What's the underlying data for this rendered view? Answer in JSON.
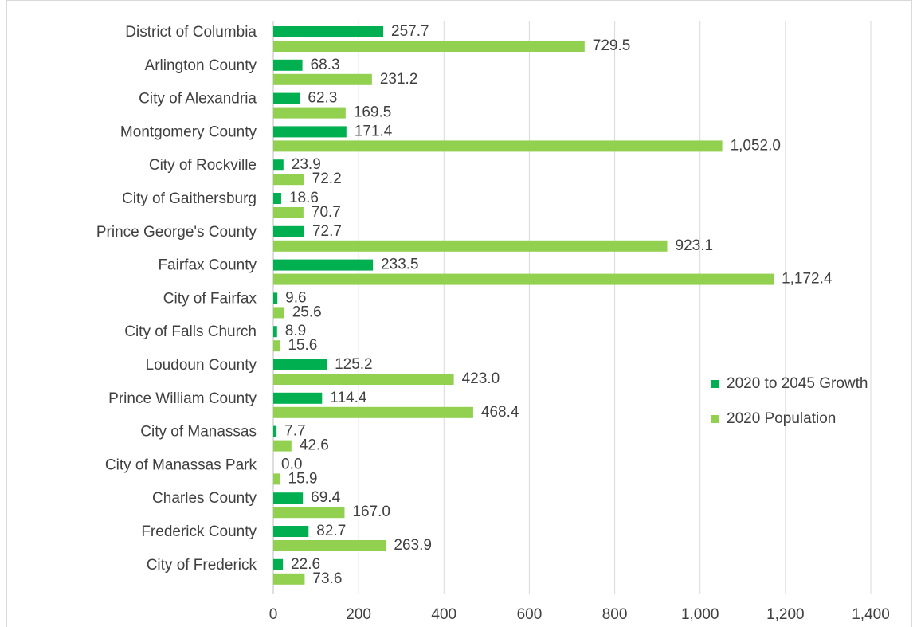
{
  "chart_data": {
    "type": "bar",
    "orientation": "horizontal",
    "categories": [
      "District of Columbia",
      "Arlington County",
      "City of Alexandria",
      "Montgomery County",
      "City of Rockville",
      "City of Gaithersburg",
      "Prince George's County",
      "Fairfax County",
      "City of Fairfax",
      "City of Falls Church",
      "Loudoun County",
      "Prince William County",
      "City of Manassas",
      "City of Manassas Park",
      "Charles County",
      "Frederick County",
      "City of Frederick"
    ],
    "series": [
      {
        "name": "2020 to 2045 Growth",
        "color": "#00b050",
        "values": [
          257.7,
          68.3,
          62.3,
          171.4,
          23.9,
          18.6,
          72.7,
          233.5,
          9.6,
          8.9,
          125.2,
          114.4,
          7.7,
          0,
          69.4,
          82.7,
          22.6
        ],
        "value_labels": [
          "257.7",
          "68.3",
          "62.3",
          "171.4",
          "23.9",
          "18.6",
          "72.7",
          "233.5",
          "9.6",
          "8.9",
          "125.2",
          "114.4",
          "7.7",
          "0.0",
          "69.4",
          "82.7",
          "22.6"
        ]
      },
      {
        "name": "2020 Population",
        "color": "#92d050",
        "values": [
          729.5,
          231.2,
          169.5,
          1052.0,
          72.2,
          70.7,
          923.1,
          1172.4,
          25.6,
          15.6,
          423.0,
          468.4,
          42.6,
          15.9,
          167.0,
          263.9,
          73.6
        ],
        "value_labels": [
          "729.5",
          "231.2",
          "169.5",
          "1,052.0",
          "72.2",
          "70.7",
          "923.1",
          "1,172.4",
          "25.6",
          "15.6",
          "423.0",
          "468.4",
          "42.6",
          "15.9",
          "167.0",
          "263.9",
          "73.6"
        ]
      }
    ],
    "xlim": [
      0,
      1400
    ],
    "xticks": [
      0,
      200,
      400,
      600,
      800,
      {
        "value": 1000,
        "label": "1,000"
      },
      {
        "value": 1200,
        "label": "1,200"
      },
      {
        "value": 1400,
        "label": "1,400"
      }
    ],
    "grid": true,
    "legend": "right"
  }
}
